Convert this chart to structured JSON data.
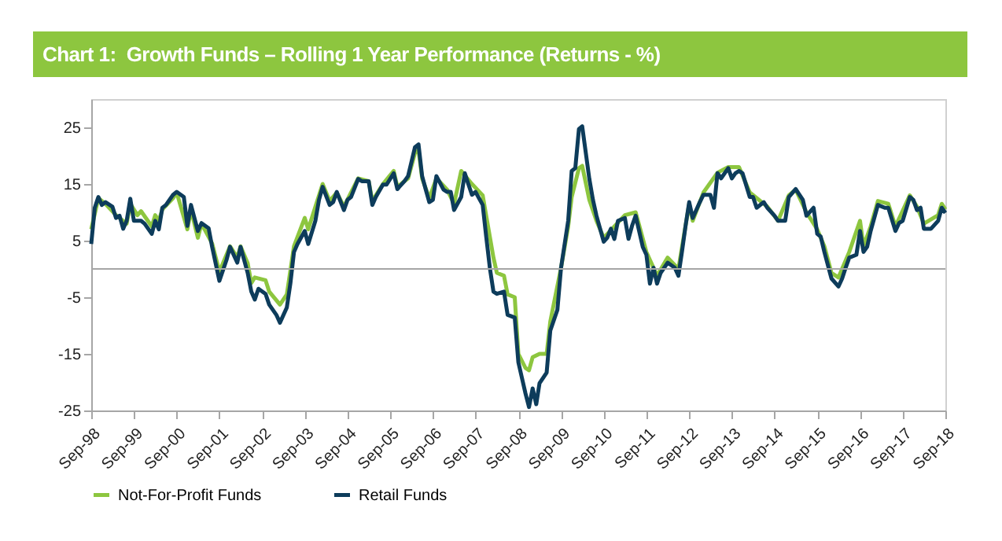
{
  "chart_data": {
    "type": "line",
    "title": "Chart 1:  Growth Funds – Rolling 1 Year Performance (Returns - %)",
    "xlim": [
      "1998-09",
      "2018-09"
    ],
    "xticks": [
      {
        "value": "1998-09",
        "label": "Sep-98"
      },
      {
        "value": "1999-09",
        "label": "Sep-99"
      },
      {
        "value": "2000-09",
        "label": "Sep-00"
      },
      {
        "value": "2001-09",
        "label": "Sep-01"
      },
      {
        "value": "2002-09",
        "label": "Sep-02"
      },
      {
        "value": "2003-09",
        "label": "Sep-03"
      },
      {
        "value": "2004-09",
        "label": "Sep-04"
      },
      {
        "value": "2005-09",
        "label": "Sep-05"
      },
      {
        "value": "2006-09",
        "label": "Sep-06"
      },
      {
        "value": "2007-09",
        "label": "Sep-07"
      },
      {
        "value": "2008-09",
        "label": "Sep-08"
      },
      {
        "value": "2009-09",
        "label": "Sep-09"
      },
      {
        "value": "2010-09",
        "label": "Sep-10"
      },
      {
        "value": "2011-09",
        "label": "Sep-11"
      },
      {
        "value": "2012-09",
        "label": "Sep-12"
      },
      {
        "value": "2013-09",
        "label": "Sep-13"
      },
      {
        "value": "2014-09",
        "label": "Sep-14"
      },
      {
        "value": "2015-09",
        "label": "Sep-15"
      },
      {
        "value": "2016-09",
        "label": "Sep-16"
      },
      {
        "value": "2017-09",
        "label": "Sep-17"
      },
      {
        "value": "2018-09",
        "label": "Sep-18"
      }
    ],
    "ylim": [
      -25,
      30
    ],
    "yticks": [
      -25,
      -15,
      -5,
      5,
      15,
      25
    ],
    "ref_lines": [
      {
        "axis": "y",
        "value": 0,
        "color": "#a6a6a6"
      }
    ],
    "legend": "bottom",
    "line_style": "solid",
    "series": [
      {
        "name": "Not-For-Profit Funds",
        "color": "#8dc63f",
        "x": [
          "1998-09",
          "1998-11",
          "1999-01",
          "1999-04",
          "1999-07",
          "1999-08",
          "1999-10",
          "1999-11",
          "2000-02",
          "2000-03",
          "2000-04",
          "2000-05",
          "2000-08",
          "2000-09",
          "2000-12",
          "2001-01",
          "2001-03",
          "2001-04",
          "2001-07",
          "2001-09",
          "2001-12",
          "2002-02",
          "2002-03",
          "2002-05",
          "2002-06",
          "2002-07",
          "2002-10",
          "2002-11",
          "2003-02",
          "2003-04",
          "2003-06",
          "2003-09",
          "2003-10",
          "2004-01",
          "2004-02",
          "2004-04",
          "2004-06",
          "2004-08",
          "2004-12",
          "2005-03",
          "2005-04",
          "2005-07",
          "2005-10",
          "2005-11",
          "2006-02",
          "2006-04",
          "2006-05",
          "2006-06",
          "2006-08",
          "2006-10",
          "2007-01",
          "2007-03",
          "2007-05",
          "2007-08",
          "2007-11",
          "2007-12",
          "2008-02",
          "2008-03",
          "2008-05",
          "2008-06",
          "2008-08",
          "2008-09",
          "2008-11",
          "2008-12",
          "2009-01",
          "2009-03",
          "2009-05",
          "2009-06",
          "2009-09",
          "2009-11",
          "2009-12",
          "2010-02",
          "2010-03",
          "2010-05",
          "2010-07",
          "2010-09",
          "2011-03",
          "2011-06",
          "2011-09",
          "2011-10",
          "2011-12",
          "2012-03",
          "2012-06",
          "2012-09",
          "2012-10",
          "2013-01",
          "2013-05",
          "2013-08",
          "2013-11",
          "2014-02",
          "2014-07",
          "2014-10",
          "2015-01",
          "2015-03",
          "2015-06",
          "2015-09",
          "2015-11",
          "2016-01",
          "2016-03",
          "2016-06",
          "2016-09",
          "2016-10",
          "2016-12",
          "2017-02",
          "2017-05",
          "2017-07",
          "2017-11",
          "2018-01",
          "2018-03",
          "2018-07",
          "2018-08",
          "2018-09"
        ],
        "values": [
          7,
          12.5,
          11.5,
          9.5,
          8,
          11.5,
          9.5,
          10.2,
          7.5,
          9.5,
          8.5,
          10.5,
          12.5,
          13.5,
          7,
          10.5,
          5.5,
          8,
          4.5,
          -0.5,
          4,
          2,
          4,
          1,
          -2.5,
          -1.5,
          -2,
          -4,
          -6.3,
          -4.5,
          4,
          9,
          7,
          13,
          15,
          12,
          13.5,
          11,
          16,
          15.5,
          12,
          15,
          17.3,
          14.5,
          16,
          20.5,
          21,
          16,
          12.5,
          16,
          14,
          11.5,
          17.3,
          15,
          13,
          9.4,
          2,
          -0.7,
          -1.2,
          -4.5,
          -5,
          -15,
          -17.5,
          -17.9,
          -15.6,
          -15,
          -15,
          -9.3,
          0.2,
          7.5,
          12.7,
          17.8,
          18.2,
          12.2,
          8.5,
          5.5,
          9.5,
          10,
          3,
          1.6,
          -1.2,
          2,
          0,
          11.5,
          8.5,
          13.5,
          17,
          18,
          18,
          13.5,
          11,
          8.5,
          13,
          14,
          10,
          7,
          4,
          -0.7,
          -1.5,
          3,
          8.5,
          4,
          7.5,
          12,
          11.5,
          7.5,
          13,
          11,
          8,
          9.5,
          11.5,
          10.5
        ]
      },
      {
        "name": "Retail Funds",
        "color": "#0d3c5b",
        "x": [
          "1998-09",
          "1998-10",
          "1998-11",
          "1998-12",
          "1999-01",
          "1999-03",
          "1999-04",
          "1999-05",
          "1999-06",
          "1999-07",
          "1999-08",
          "1999-09",
          "1999-11",
          "1999-12",
          "2000-02",
          "2000-03",
          "2000-04",
          "2000-05",
          "2000-06",
          "2000-08",
          "2000-09",
          "2000-11",
          "2000-12",
          "2001-01",
          "2001-03",
          "2001-04",
          "2001-06",
          "2001-07",
          "2001-09",
          "2001-11",
          "2001-12",
          "2002-02",
          "2002-03",
          "2002-05",
          "2002-06",
          "2002-07",
          "2002-08",
          "2002-10",
          "2002-11",
          "2003-01",
          "2003-02",
          "2003-04",
          "2003-05",
          "2003-06",
          "2003-07",
          "2003-09",
          "2003-10",
          "2003-12",
          "2004-01",
          "2004-02",
          "2004-04",
          "2004-05",
          "2004-06",
          "2004-08",
          "2004-09",
          "2004-10",
          "2004-12",
          "2005-01",
          "2005-03",
          "2005-04",
          "2005-05",
          "2005-07",
          "2005-08",
          "2005-10",
          "2005-11",
          "2006-01",
          "2006-02",
          "2006-04",
          "2006-05",
          "2006-06",
          "2006-07",
          "2006-08",
          "2006-09",
          "2006-10",
          "2006-12",
          "2007-01",
          "2007-02",
          "2007-03",
          "2007-05",
          "2007-06",
          "2007-07",
          "2007-08",
          "2007-09",
          "2007-11",
          "2007-12",
          "2008-01",
          "2008-02",
          "2008-03",
          "2008-05",
          "2008-06",
          "2008-08",
          "2008-09",
          "2008-11",
          "2008-12",
          "2009-01",
          "2009-02",
          "2009-03",
          "2009-05",
          "2009-06",
          "2009-08",
          "2009-09",
          "2009-11",
          "2009-12",
          "2010-01",
          "2010-02",
          "2010-03",
          "2010-05",
          "2010-06",
          "2010-07",
          "2010-09",
          "2010-10",
          "2010-11",
          "2010-12",
          "2011-01",
          "2011-03",
          "2011-04",
          "2011-05",
          "2011-06",
          "2011-08",
          "2011-09",
          "2011-10",
          "2011-11",
          "2011-12",
          "2012-01",
          "2012-03",
          "2012-05",
          "2012-06",
          "2012-07",
          "2012-08",
          "2012-09",
          "2012-10",
          "2012-12",
          "2013-01",
          "2013-03",
          "2013-04",
          "2013-05",
          "2013-06",
          "2013-08",
          "2013-09",
          "2013-10",
          "2013-11",
          "2013-12",
          "2014-02",
          "2014-03",
          "2014-04",
          "2014-06",
          "2014-07",
          "2014-09",
          "2014-10",
          "2014-12",
          "2015-01",
          "2015-03",
          "2015-05",
          "2015-06",
          "2015-08",
          "2015-09",
          "2015-10",
          "2015-11",
          "2016-01",
          "2016-03",
          "2016-04",
          "2016-05",
          "2016-06",
          "2016-08",
          "2016-09",
          "2016-10",
          "2016-11",
          "2016-12",
          "2017-02",
          "2017-04",
          "2017-05",
          "2017-07",
          "2017-08",
          "2017-09",
          "2017-11",
          "2017-12",
          "2018-01",
          "2018-02",
          "2018-03",
          "2018-05",
          "2018-07",
          "2018-08",
          "2018-09"
        ],
        "values": [
          4.4,
          10.8,
          12.7,
          11.3,
          11.8,
          11,
          9,
          9.4,
          7.1,
          8.5,
          12.4,
          8.5,
          8.5,
          8,
          6.2,
          8.5,
          7,
          10.8,
          11.3,
          13.1,
          13.6,
          12.7,
          7.6,
          11.3,
          6.7,
          8.1,
          7.2,
          3.9,
          -2.1,
          1.6,
          3.9,
          1.1,
          3.9,
          -0.7,
          -4,
          -5.4,
          -3.5,
          -4.4,
          -6.3,
          -8.1,
          -9.5,
          -6.8,
          -2.6,
          3,
          4.4,
          6.7,
          4.4,
          8.5,
          12.2,
          14.5,
          11.3,
          11.8,
          13.6,
          10.4,
          12.2,
          12.7,
          15.9,
          15.5,
          15.5,
          11.3,
          12.7,
          14.9,
          14.9,
          16.9,
          14.1,
          15.5,
          16.4,
          21.5,
          22,
          16.4,
          14.1,
          11.8,
          12.2,
          16.4,
          14,
          13.6,
          13.6,
          10.4,
          12.7,
          16.9,
          15,
          13.1,
          13.6,
          11.3,
          5.7,
          0.2,
          -4,
          -4.4,
          -4,
          -8.1,
          -8.6,
          -16.5,
          -22,
          -24.4,
          -21.1,
          -23.9,
          -20.2,
          -18.3,
          -10.9,
          -7.2,
          0.2,
          8.5,
          17.3,
          17.8,
          24.7,
          25.2,
          15.9,
          12.2,
          9.4,
          4.8,
          5.5,
          7.1,
          5.3,
          8.5,
          9,
          5.3,
          7.6,
          9.4,
          3.9,
          2.5,
          -2.6,
          0.2,
          -2.6,
          -0.7,
          1.1,
          0.2,
          -1.2,
          3,
          7.6,
          11.8,
          9,
          11.8,
          13.1,
          13.1,
          10.8,
          16.9,
          16,
          17.8,
          16,
          16.9,
          17.3,
          16.9,
          12.7,
          12.7,
          10.8,
          11.8,
          10.8,
          9.4,
          8.5,
          8.5,
          12.7,
          14.1,
          12.2,
          9.4,
          10.8,
          6.2,
          5.7,
          3,
          -1.7,
          -3.1,
          -1.7,
          0.2,
          2,
          2.5,
          6.7,
          3,
          3.9,
          6.7,
          11.3,
          10.8,
          10.8,
          6.7,
          8.1,
          8.5,
          12.7,
          12.2,
          10.4,
          10.8,
          7.1,
          7.1,
          8.5,
          10.8,
          9.9
        ]
      }
    ]
  }
}
